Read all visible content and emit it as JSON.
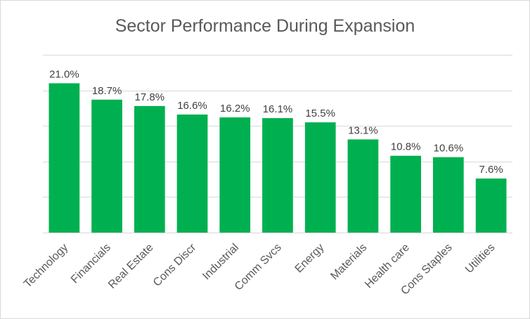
{
  "chart_data": {
    "type": "bar",
    "title": "Sector Performance During Expansion",
    "xlabel": "",
    "ylabel": "",
    "categories": [
      "Technology",
      "Financials",
      "Real Estate",
      "Cons Discr",
      "Industrial",
      "Comm Svcs",
      "Energy",
      "Materials",
      "Health care",
      "Cons Staples",
      "Utilities"
    ],
    "values": [
      21.0,
      18.7,
      17.8,
      16.6,
      16.2,
      16.1,
      15.5,
      13.1,
      10.8,
      10.6,
      7.6
    ],
    "data_labels": [
      "21.0%",
      "18.7%",
      "17.8%",
      "16.6%",
      "16.2%",
      "16.1%",
      "15.5%",
      "13.1%",
      "10.8%",
      "10.6%",
      "7.6%"
    ],
    "ylim": [
      0,
      25
    ],
    "y_gridlines": [
      0,
      5,
      10,
      15,
      20,
      25
    ],
    "grid": true,
    "legend": "none",
    "bar_color": "#00B050",
    "y_axis_labels_visible": false
  }
}
